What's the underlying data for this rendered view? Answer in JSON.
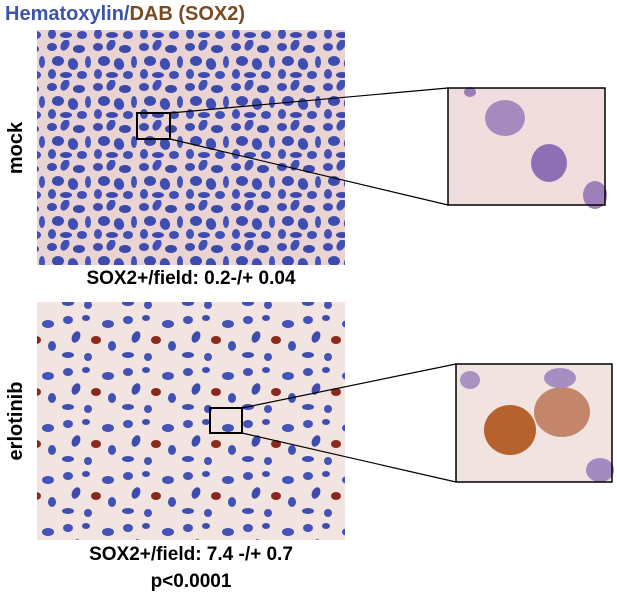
{
  "header": {
    "title_stain1": "Hematoxylin/",
    "title_stain2": "DAB (SOX2)"
  },
  "panels": [
    {
      "label": "mock",
      "caption": "SOX2+/field: 0.2-/+ 0.04"
    },
    {
      "label": "erlotinib",
      "caption": "SOX2+/field: 7.4 -/+ 0.7",
      "stats": "p<0.0001"
    }
  ]
}
